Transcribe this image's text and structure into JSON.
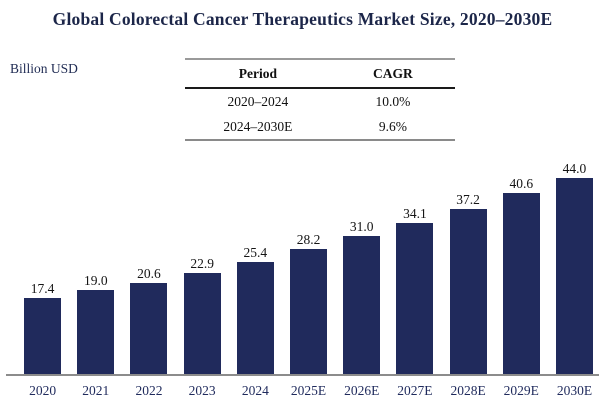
{
  "title": "Global Colorectal Cancer Therapeutics Market Size, 2020–2030E",
  "unit_label": "Billion USD",
  "cagr_table": {
    "headers": [
      "Period",
      "CAGR"
    ],
    "rows": [
      {
        "period": "2020–2024",
        "cagr": "10.0%"
      },
      {
        "period": "2024–2030E",
        "cagr": "9.6%"
      }
    ]
  },
  "chart_data": {
    "type": "bar",
    "categories": [
      "2020",
      "2021",
      "2022",
      "2023",
      "2024",
      "2025E",
      "2026E",
      "2027E",
      "2028E",
      "2029E",
      "2030E"
    ],
    "values": [
      17.4,
      19.0,
      20.6,
      22.9,
      25.4,
      28.2,
      31.0,
      34.1,
      37.2,
      40.6,
      44.0
    ],
    "title": "Global Colorectal Cancer Therapeutics Market Size, 2020–2030E",
    "xlabel": "",
    "ylabel": "Billion USD",
    "ylim": [
      0,
      48
    ],
    "grid": false,
    "legend_position": "none",
    "data_labels": true
  },
  "colors": {
    "bar": "#202a5c",
    "title_text": "#1c2649",
    "axis_label_text": "#1f2a5c",
    "value_label_text": "#151515",
    "axis_line": "#8c8c8c"
  }
}
